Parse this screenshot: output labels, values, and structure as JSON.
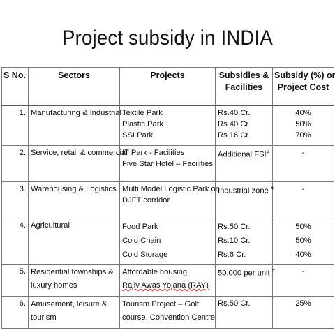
{
  "title": "Project subsidy in INDIA",
  "headers": {
    "sno": "S No.",
    "sectors": "Sectors",
    "projects": "Projects",
    "subsidies_line1": "Subsidies &",
    "subsidies_line2": "Facilities",
    "cost_line1": "Subsidy (%) on",
    "cost_line2": "Project Cost"
  },
  "rows": [
    {
      "sno": "1.",
      "sector": [
        "Manufacturing & Industrial"
      ],
      "projects": [
        "Textile Park",
        "Plastic Park",
        "SSI Park"
      ],
      "subsidies": [
        "Rs.40 Cr.",
        "Rs.40 Cr.",
        "Rs.16 Cr."
      ],
      "percent": [
        "40%",
        "50%",
        "70%"
      ]
    },
    {
      "sno": "2.",
      "sector": [
        "Service, retail & commercial"
      ],
      "projects": [
        "IT Park  - Facilities",
        "Five Star Hotel – Facilities"
      ],
      "subsidies": [
        "Additional FSI"
      ],
      "subsidies_mark": "#",
      "percent": [
        "-"
      ]
    },
    {
      "sno": "3.",
      "sector": [
        "Warehousing & Logistics"
      ],
      "projects": [
        "Multi Model Logistic Park on",
        "DJFT corridor"
      ],
      "subsidies": [
        "Industrial zone "
      ],
      "subsidies_mark": "#",
      "percent": [
        "-"
      ]
    },
    {
      "sno": "4.",
      "sector": [
        "Agricultural"
      ],
      "projects": [
        "Food Park",
        "Cold Chain",
        "Cold Storage"
      ],
      "subsidies": [
        "Rs.50 Cr.",
        "Rs.10 Cr.",
        "Rs.6 Cr."
      ],
      "percent": [
        "50%",
        "50%",
        "40%"
      ]
    },
    {
      "sno": "5.",
      "sector": [
        "Residential townships &",
        "luxury homes"
      ],
      "projects": [
        "Affordable housing",
        "Rajiv Awas Yojana (RAY)"
      ],
      "subsidies": [
        "50,000 per unit "
      ],
      "subsidies_mark": "#",
      "percent": [
        "-"
      ]
    },
    {
      "sno": "6.",
      "sector": [
        "Amusement, leisure &",
        "tourism"
      ],
      "projects": [
        "Tourism Project – Golf",
        "course,  Convention Centre"
      ],
      "subsidies": [
        "Rs.50 Cr."
      ],
      "percent": [
        "25%"
      ]
    }
  ]
}
